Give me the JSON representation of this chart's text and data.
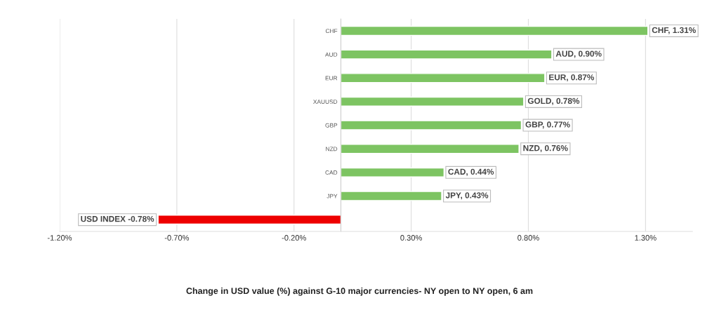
{
  "chart_data": {
    "type": "bar",
    "orientation": "horizontal",
    "categories": [
      "CHF",
      "AUD",
      "EUR",
      "XAUUSD",
      "GBP",
      "NZD",
      "CAD",
      "JPY",
      null
    ],
    "values": [
      1.31,
      0.9,
      0.87,
      0.78,
      0.77,
      0.76,
      0.44,
      0.43,
      -0.78
    ],
    "colors": [
      "#7dc462",
      "#7dc462",
      "#7dc462",
      "#7dc462",
      "#7dc462",
      "#7dc462",
      "#7dc462",
      "#7dc462",
      "#ee0000"
    ],
    "value_labels": [
      "CHF, 1.31%",
      "AUD, 0.90%",
      "EUR, 0.87%",
      "GOLD, 0.78%",
      "GBP, 0.77%",
      "NZD, 0.76%",
      "CAD, 0.44%",
      "JPY, 0.43%",
      "USD INDEX -0.78%"
    ],
    "xlim": [
      -1.2,
      1.5
    ],
    "xticks": [
      {
        "value": -1.2,
        "label": "-1.20%"
      },
      {
        "value": -0.7,
        "label": "-0.70%"
      },
      {
        "value": -0.2,
        "label": "-0.20%"
      },
      {
        "value": 0.3,
        "label": "0.30%"
      },
      {
        "value": 0.8,
        "label": "0.80%"
      },
      {
        "value": 1.3,
        "label": "1.30%"
      }
    ],
    "grid": "x",
    "annotations": [
      "Change in USD value (%) against G-10 major currencies- NY open to NY open, 6 am"
    ]
  }
}
